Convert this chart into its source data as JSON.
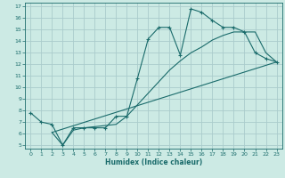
{
  "xlabel": "Humidex (Indice chaleur)",
  "bg_color": "#cceae4",
  "grid_color": "#aacccc",
  "line_color": "#1a6b6b",
  "xlim": [
    -0.5,
    23.5
  ],
  "ylim": [
    4.7,
    17.3
  ],
  "xticks": [
    0,
    1,
    2,
    3,
    4,
    5,
    6,
    7,
    8,
    9,
    10,
    11,
    12,
    13,
    14,
    15,
    16,
    17,
    18,
    19,
    20,
    21,
    22,
    23
  ],
  "yticks": [
    5,
    6,
    7,
    8,
    9,
    10,
    11,
    12,
    13,
    14,
    15,
    16,
    17
  ],
  "line1_x": [
    0,
    1,
    2,
    3,
    4,
    5,
    6,
    7,
    8,
    9,
    10,
    11,
    12,
    13,
    14,
    15,
    16,
    17,
    18,
    19,
    20,
    21,
    22,
    23
  ],
  "line1_y": [
    7.8,
    7.0,
    6.8,
    5.0,
    6.5,
    6.5,
    6.5,
    6.5,
    7.5,
    7.5,
    10.8,
    14.2,
    15.2,
    15.2,
    12.8,
    16.8,
    16.5,
    15.8,
    15.2,
    15.2,
    14.8,
    13.0,
    12.5,
    12.2
  ],
  "line2_x": [
    2,
    3,
    4,
    5,
    6,
    7,
    8,
    9,
    10,
    11,
    12,
    13,
    14,
    15,
    16,
    17,
    18,
    19,
    20,
    21,
    22,
    23
  ],
  "line2_y": [
    6.1,
    5.0,
    6.3,
    6.5,
    6.6,
    6.7,
    6.8,
    7.5,
    8.5,
    9.5,
    10.5,
    11.5,
    12.3,
    13.0,
    13.5,
    14.1,
    14.5,
    14.8,
    14.8,
    14.8,
    13.0,
    12.2
  ],
  "line3_x": [
    2,
    23
  ],
  "line3_y": [
    6.1,
    12.2
  ]
}
